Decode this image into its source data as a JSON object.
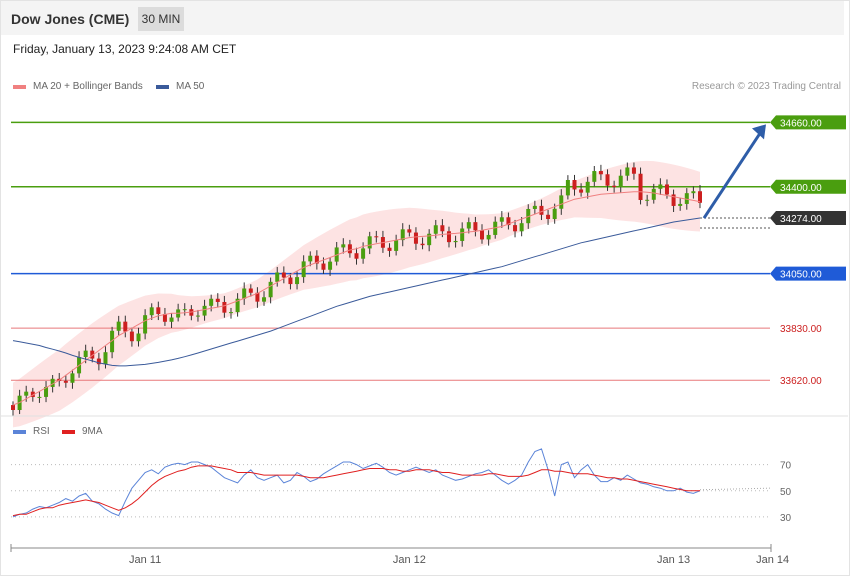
{
  "header": {
    "title": "Dow Jones (CME)",
    "interval": "30 MIN",
    "timestamp": "Friday, January 13, 2023 9:24:08 AM CET"
  },
  "legend": {
    "ma20": "MA 20 + Bollinger Bands",
    "ma50": "MA 50",
    "credit": "Research © 2023 Trading Central",
    "rsi": "RSI",
    "ma9": "9MA"
  },
  "colors": {
    "resistance": "#4a9e0f",
    "current": "#333333",
    "pivot": "#1f5bd7",
    "support": "#e8787a",
    "bands": "#fde3e3",
    "ma20": "#f08080",
    "ma50": "#3a5a9a",
    "bull": "#4a9e0f",
    "bear": "#cc1f1f",
    "rsi": "#5b84d8",
    "rsi_ma": "#e02020",
    "arrow": "#2e5da8"
  },
  "chart_data": [
    {
      "type": "line",
      "title": "Dow Jones (CME)",
      "ylim": [
        33500,
        34750
      ],
      "levels": [
        {
          "label": "34660.00",
          "value": 34660,
          "kind": "resistance"
        },
        {
          "label": "34400.00",
          "value": 34400,
          "kind": "resistance"
        },
        {
          "label": "34274.00",
          "value": 34274,
          "kind": "current"
        },
        {
          "label": "34050.00",
          "value": 34050,
          "kind": "pivot"
        },
        {
          "label": "33830.00",
          "value": 33830,
          "kind": "support"
        },
        {
          "label": "33620.00",
          "value": 33620,
          "kind": "support"
        }
      ],
      "x_ticks": [
        "Jan 11",
        "Jan 12",
        "Jan 13",
        "Jan 14"
      ],
      "x_tick_index": [
        20,
        60,
        100,
        115
      ],
      "series": [
        {
          "name": "MA 20 + Bollinger Bands",
          "values": [
            33520,
            33530,
            33545,
            33560,
            33575,
            33590,
            33605,
            33620,
            33640,
            33660,
            33680,
            33700,
            33720,
            33740,
            33760,
            33780,
            33800,
            33815,
            33830,
            33845,
            33860,
            33870,
            33880,
            33885,
            33890,
            33890,
            33892,
            33895,
            33900,
            33905,
            33910,
            33915,
            33920,
            33930,
            33940,
            33950,
            33960,
            33970,
            33985,
            34000,
            34015,
            34030,
            34045,
            34060,
            34075,
            34085,
            34095,
            34105,
            34115,
            34125,
            34135,
            34145,
            34150,
            34160,
            34165,
            34170,
            34175,
            34180,
            34185,
            34190,
            34195,
            34198,
            34200,
            34202,
            34205,
            34208,
            34210,
            34212,
            34215,
            34218,
            34220,
            34225,
            34230,
            34235,
            34240,
            34250,
            34260,
            34270,
            34280,
            34290,
            34300,
            34310,
            34320,
            34330,
            34340,
            34350,
            34355,
            34360,
            34365,
            34370,
            34372,
            34374,
            34376,
            34378,
            34380,
            34380,
            34378,
            34375,
            34370,
            34365,
            34360,
            34355,
            34350,
            34345,
            34340
          ]
        },
        {
          "name": "MA 50",
          "values": [
            33780,
            33775,
            33770,
            33765,
            33760,
            33752,
            33745,
            33738,
            33730,
            33720,
            33712,
            33705,
            33698,
            33690,
            33685,
            33680,
            33678,
            33678,
            33680,
            33682,
            33684,
            33688,
            33692,
            33697,
            33702,
            33708,
            33715,
            33722,
            33730,
            33738,
            33746,
            33754,
            33762,
            33770,
            33778,
            33786,
            33794,
            33802,
            33810,
            33818,
            33828,
            33838,
            33848,
            33858,
            33868,
            33878,
            33888,
            33898,
            33908,
            33918,
            33926,
            33934,
            33942,
            33950,
            33958,
            33964,
            33970,
            33976,
            33982,
            33988,
            33994,
            34000,
            34006,
            34012,
            34018,
            34024,
            34030,
            34036,
            34042,
            34048,
            34054,
            34060,
            34066,
            34072,
            34078,
            34086,
            34094,
            34102,
            34110,
            34118,
            34126,
            34134,
            34142,
            34150,
            34158,
            34166,
            34174,
            34180,
            34186,
            34192,
            34198,
            34204,
            34210,
            34216,
            34222,
            34228,
            34234,
            34240,
            34246,
            34252,
            34258,
            34262,
            34266,
            34270,
            34274
          ]
        }
      ]
    },
    {
      "type": "line",
      "title": "",
      "ylim": [
        20,
        85
      ],
      "y_ticks": [
        70,
        50,
        30
      ],
      "series": [
        {
          "name": "RSI",
          "values": [
            30,
            32,
            33,
            36,
            38,
            37,
            39,
            41,
            44,
            42,
            46,
            48,
            42,
            40,
            36,
            33,
            31,
            42,
            52,
            58,
            64,
            66,
            63,
            68,
            70,
            71,
            70,
            72,
            72,
            70,
            68,
            64,
            60,
            58,
            56,
            62,
            66,
            60,
            58,
            60,
            62,
            56,
            58,
            64,
            61,
            57,
            59,
            63,
            66,
            69,
            72,
            72,
            70,
            67,
            69,
            71,
            68,
            64,
            62,
            64,
            66,
            68,
            66,
            64,
            66,
            62,
            60,
            58,
            59,
            61,
            63,
            64,
            66,
            62,
            58,
            55,
            58,
            62,
            72,
            80,
            82,
            66,
            46,
            70,
            72,
            60,
            66,
            70,
            62,
            57,
            57,
            60,
            58,
            62,
            59,
            56,
            55,
            53,
            52,
            50,
            50,
            52,
            49,
            48,
            50
          ]
        },
        {
          "name": "9MA",
          "values": [
            31,
            32,
            32,
            34,
            36,
            37,
            37,
            39,
            40,
            41,
            42,
            43,
            42,
            41,
            39,
            37,
            35,
            37,
            40,
            44,
            49,
            54,
            58,
            61,
            63,
            65,
            66,
            68,
            69,
            69,
            69,
            68,
            67,
            66,
            64,
            64,
            64,
            63,
            62,
            62,
            62,
            62,
            62,
            62,
            61,
            60,
            60,
            60,
            61,
            62,
            63,
            64,
            65,
            66,
            67,
            67,
            67,
            66,
            66,
            65,
            65,
            66,
            66,
            66,
            65,
            64,
            64,
            63,
            62,
            62,
            62,
            62,
            63,
            63,
            62,
            61,
            61,
            61,
            62,
            64,
            66,
            66,
            65,
            65,
            64,
            63,
            63,
            63,
            62,
            61,
            60,
            60,
            59,
            59,
            58,
            57,
            56,
            55,
            54,
            53,
            52,
            51,
            50,
            50,
            50
          ]
        }
      ]
    }
  ]
}
